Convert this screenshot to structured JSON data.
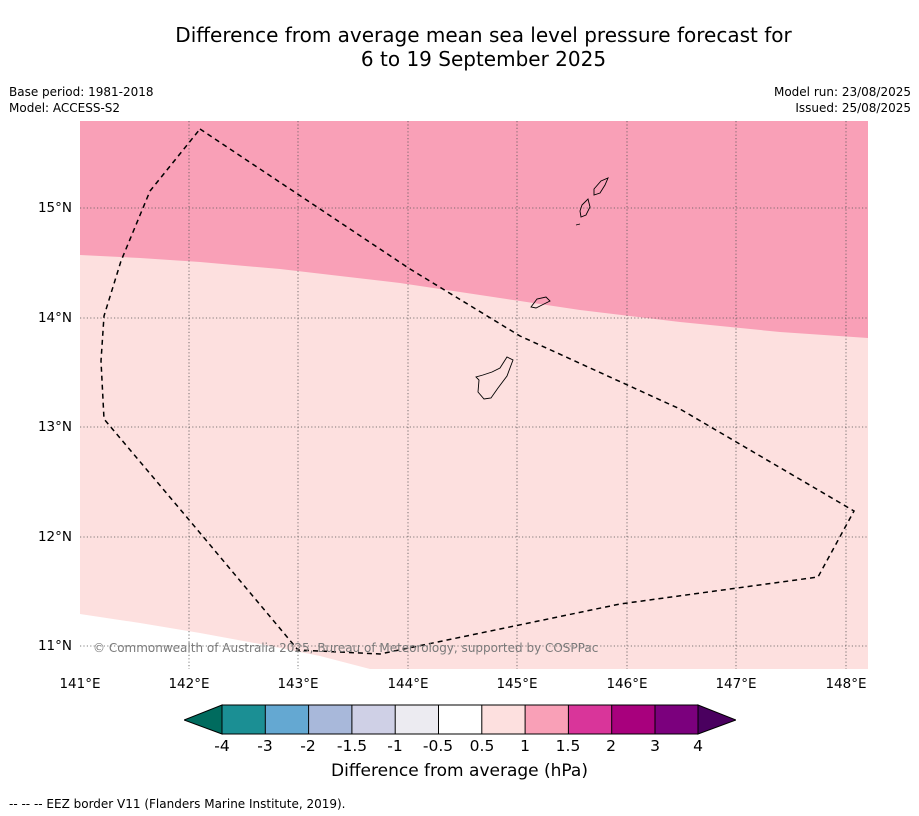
{
  "title": {
    "line1": "Difference from average mean sea level pressure forecast for",
    "line2": "6 to 19 September 2025"
  },
  "meta_left": {
    "base_period": "Base period: 1981-2018",
    "model": "Model: ACCESS-S2"
  },
  "meta_right": {
    "model_run": "Model run: 23/08/2025",
    "issued": "Issued: 25/08/2025"
  },
  "map": {
    "latitude_labels": [
      "15°N",
      "14°N",
      "13°N",
      "12°N",
      "11°N"
    ],
    "longitude_labels": [
      "141°E",
      "142°E",
      "143°E",
      "144°E",
      "145°E",
      "146°E",
      "147°E",
      "148°E"
    ],
    "gridlines": "dotted",
    "field_colors": {
      "above_1_hpa": "#f9a0b7",
      "0_5_to_1_hpa": "#fde0df",
      "minus_0_5_to_0_5_hpa": "#ffffff"
    },
    "features": [
      "EEZ border (dashed)",
      "Northern Mariana Islands",
      "Rota",
      "Guam"
    ],
    "copyright": "© Commonwealth of Australia 2025, Bureau of Meteorology, supported by COSPPac"
  },
  "colorbar": {
    "ticks": [
      "-4",
      "-3",
      "-2",
      "-1.5",
      "-1",
      "-0.5",
      "0.5",
      "1",
      "1.5",
      "2",
      "3",
      "4"
    ],
    "colors": [
      "#006b5e",
      "#1b8f94",
      "#64a8d2",
      "#a8b8da",
      "#cfd0e6",
      "#ecebf1",
      "#ffffff",
      "#fde0df",
      "#f9a0b7",
      "#d9359a",
      "#a8007d",
      "#7b007d",
      "#4a005f"
    ],
    "label": "Difference from average (hPa)"
  },
  "footer": "--  --  -- EEZ border V11 (Flanders Marine Institute, 2019)."
}
